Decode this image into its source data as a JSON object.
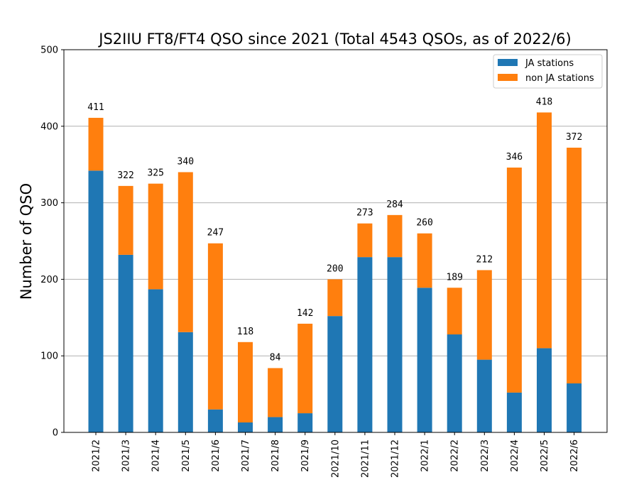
{
  "chart_data": {
    "type": "bar",
    "stacked": true,
    "title": "JS2IIU FT8/FT4 QSO since 2021 (Total 4543 QSOs, as of 2022/6)",
    "xlabel": "",
    "ylabel": "Number of QSO",
    "ylim": [
      0,
      500
    ],
    "yticks": [
      0,
      100,
      200,
      300,
      400,
      500
    ],
    "grid": "horizontal",
    "legend_position": "top-right",
    "categories": [
      "2021/2",
      "2021/3",
      "2021/4",
      "2021/5",
      "2021/6",
      "2021/7",
      "2021/8",
      "2021/9",
      "2021/10",
      "2021/11",
      "2021/12",
      "2022/1",
      "2022/2",
      "2022/3",
      "2022/4",
      "2022/5",
      "2022/6"
    ],
    "series": [
      {
        "name": "JA stations",
        "color": "#1f77b4",
        "values": [
          342,
          232,
          187,
          131,
          30,
          13,
          20,
          25,
          152,
          229,
          229,
          189,
          128,
          95,
          52,
          110,
          64
        ]
      },
      {
        "name": "non JA stations",
        "color": "#ff7f0e",
        "values": [
          69,
          90,
          138,
          209,
          217,
          105,
          64,
          117,
          48,
          44,
          55,
          71,
          61,
          117,
          294,
          308,
          308
        ]
      }
    ],
    "totals": [
      "411",
      "322",
      "325",
      "340",
      "247",
      "118",
      "84",
      "142",
      "200",
      "273",
      "284",
      "260",
      "189",
      "212",
      "346",
      "418",
      "372"
    ]
  }
}
